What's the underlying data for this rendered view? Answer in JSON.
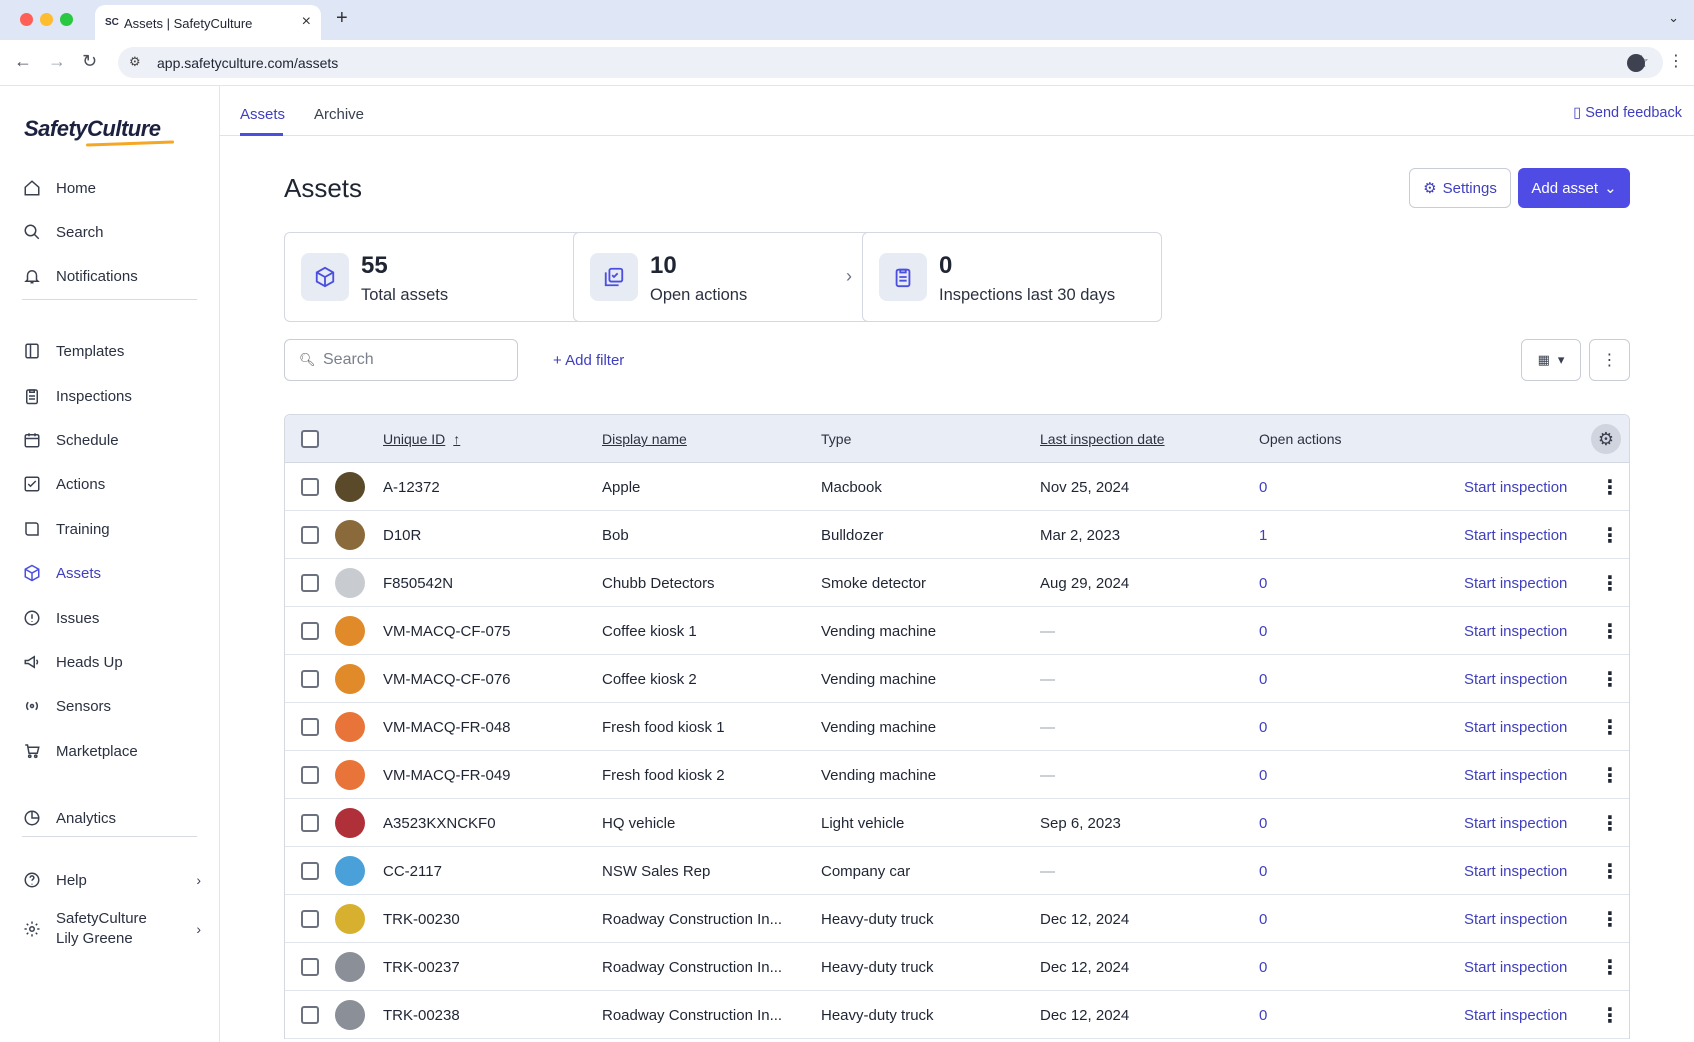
{
  "browser": {
    "tab_title": "Assets | SafetyCulture",
    "tab_favicon": "SC",
    "url": "app.safetyculture.com/assets"
  },
  "sidebar": {
    "logo": "SafetyCulture",
    "items": [
      {
        "label": "Home",
        "icon": "home-icon"
      },
      {
        "label": "Search",
        "icon": "search-icon"
      },
      {
        "label": "Notifications",
        "icon": "bell-icon"
      },
      {
        "label": "Templates",
        "icon": "templates-icon"
      },
      {
        "label": "Inspections",
        "icon": "clipboard-icon"
      },
      {
        "label": "Schedule",
        "icon": "calendar-icon"
      },
      {
        "label": "Actions",
        "icon": "actions-icon"
      },
      {
        "label": "Training",
        "icon": "training-icon"
      },
      {
        "label": "Assets",
        "icon": "cube-icon"
      },
      {
        "label": "Issues",
        "icon": "issues-icon"
      },
      {
        "label": "Heads Up",
        "icon": "megaphone-icon"
      },
      {
        "label": "Sensors",
        "icon": "sensors-icon"
      },
      {
        "label": "Marketplace",
        "icon": "cart-icon"
      },
      {
        "label": "Analytics",
        "icon": "analytics-icon"
      }
    ],
    "help": "Help",
    "org": "SafetyCulture",
    "user": "Lily Greene"
  },
  "tabs": {
    "assets": "Assets",
    "archive": "Archive",
    "feedback": "Send feedback"
  },
  "header": {
    "title": "Assets",
    "settings": "Settings",
    "add_asset": "Add asset"
  },
  "stats": [
    {
      "value": "55",
      "label": "Total assets"
    },
    {
      "value": "10",
      "label": "Open actions"
    },
    {
      "value": "0",
      "label": "Inspections last 30 days"
    }
  ],
  "toolbar": {
    "search_placeholder": "Search",
    "add_filter": "+ Add filter"
  },
  "table": {
    "columns": {
      "unique_id": "Unique ID",
      "display_name": "Display name",
      "type": "Type",
      "last_inspection": "Last inspection date",
      "open_actions": "Open actions"
    },
    "action_label": "Start inspection",
    "rows": [
      {
        "id": "A-12372",
        "name": "Apple",
        "type": "Macbook",
        "date": "Nov 25, 2024",
        "actions": "0",
        "thumb": "#5a4a2a"
      },
      {
        "id": "D10R",
        "name": "Bob",
        "type": "Bulldozer",
        "date": "Mar 2, 2023",
        "actions": "1",
        "thumb": "#8a6a3a"
      },
      {
        "id": "F850542N",
        "name": "Chubb Detectors",
        "type": "Smoke detector",
        "date": "Aug 29, 2024",
        "actions": "0",
        "thumb": "#c8cbd0"
      },
      {
        "id": "VM-MACQ-CF-075",
        "name": "Coffee kiosk 1",
        "type": "Vending machine",
        "date": "—",
        "actions": "0",
        "thumb": "#e08a2a"
      },
      {
        "id": "VM-MACQ-CF-076",
        "name": "Coffee kiosk 2",
        "type": "Vending machine",
        "date": "—",
        "actions": "0",
        "thumb": "#e08a2a"
      },
      {
        "id": "VM-MACQ-FR-048",
        "name": "Fresh food kiosk 1",
        "type": "Vending machine",
        "date": "—",
        "actions": "0",
        "thumb": "#e8743a"
      },
      {
        "id": "VM-MACQ-FR-049",
        "name": "Fresh food kiosk 2",
        "type": "Vending machine",
        "date": "—",
        "actions": "0",
        "thumb": "#e8743a"
      },
      {
        "id": "A3523KXNCKF0",
        "name": "HQ vehicle",
        "type": "Light vehicle",
        "date": "Sep 6, 2023",
        "actions": "0",
        "thumb": "#b0303a"
      },
      {
        "id": "CC-2117",
        "name": "NSW Sales Rep",
        "type": "Company car",
        "date": "—",
        "actions": "0",
        "thumb": "#4aa0d8"
      },
      {
        "id": "TRK-00230",
        "name": "Roadway Construction In...",
        "type": "Heavy-duty truck",
        "date": "Dec 12, 2024",
        "actions": "0",
        "thumb": "#d8b030"
      },
      {
        "id": "TRK-00237",
        "name": "Roadway Construction In...",
        "type": "Heavy-duty truck",
        "date": "Dec 12, 2024",
        "actions": "0",
        "thumb": "#8a8f98"
      },
      {
        "id": "TRK-00238",
        "name": "Roadway Construction In...",
        "type": "Heavy-duty truck",
        "date": "Dec 12, 2024",
        "actions": "0",
        "thumb": "#8a8f98"
      }
    ]
  }
}
